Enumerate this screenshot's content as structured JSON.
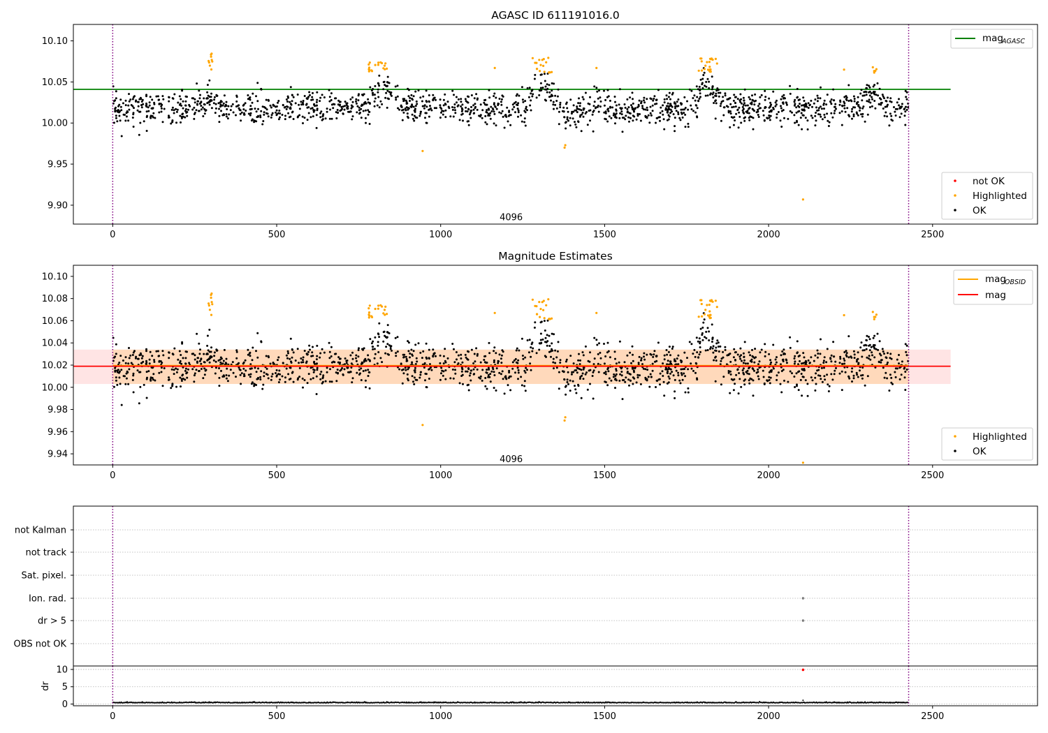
{
  "chart_data": [
    {
      "type": "scatter",
      "title": "AGASC ID 611191016.0",
      "xlim": [
        -120,
        2820
      ],
      "ylim": [
        9.877,
        10.12
      ],
      "xticks": [
        0,
        500,
        1000,
        1500,
        2000,
        2500
      ],
      "yticks": [
        9.9,
        9.95,
        10.0,
        10.05,
        10.1
      ],
      "ytick_labels": [
        "9.90",
        "9.95",
        "10.00",
        "10.05",
        "10.10"
      ],
      "vlines": [
        0,
        2427
      ],
      "hline": {
        "name": "mag",
        "subscript": "AGASC",
        "value": 10.041,
        "xmin": -120,
        "xmax": 2555,
        "color": "#008000"
      },
      "annotation": {
        "text": "4096",
        "x": 1215,
        "y": 9.885
      },
      "legend_top": [
        {
          "label": "mag",
          "subscript": "AGASC",
          "color": "#008000",
          "kind": "line"
        }
      ],
      "legend_bottom": [
        {
          "label": "not OK",
          "color": "#ff0000",
          "kind": "dot"
        },
        {
          "label": "Highlighted",
          "color": "#ffa500",
          "kind": "dot"
        },
        {
          "label": "OK",
          "color": "#000000",
          "kind": "dot"
        }
      ],
      "series": [
        {
          "name": "OK",
          "color": "#000000",
          "x_range": [
            0,
            2427
          ],
          "baseline": 10.018,
          "scatter": 0.013,
          "count": 1700
        },
        {
          "name": "Highlighted",
          "color": "#ffa500",
          "clusters": [
            {
              "x": [
                292,
                305
              ],
              "y": [
                10.061,
                10.089
              ],
              "n": 9
            },
            {
              "x": [
                780,
                840
              ],
              "y": [
                10.061,
                10.074
              ],
              "n": 18
            },
            {
              "x": [
                1280,
                1345
              ],
              "y": [
                10.061,
                10.08
              ],
              "n": 18
            },
            {
              "x": [
                1785,
                1845
              ],
              "y": [
                10.061,
                10.08
              ],
              "n": 22
            },
            {
              "x": [
                2310,
                2330
              ],
              "y": [
                10.061,
                10.071
              ],
              "n": 5
            }
          ],
          "points": [
            {
              "x": 945,
              "y": 9.966
            },
            {
              "x": 1165,
              "y": 10.067
            },
            {
              "x": 1378,
              "y": 9.97
            },
            {
              "x": 1380,
              "y": 9.973
            },
            {
              "x": 1475,
              "y": 10.067
            },
            {
              "x": 2230,
              "y": 10.065
            },
            {
              "x": 2105,
              "y": 9.907
            }
          ]
        },
        {
          "name": "not OK",
          "color": "#ff0000",
          "points": []
        }
      ]
    },
    {
      "type": "scatter",
      "title": "Magnitude Estimates",
      "xlim": [
        -120,
        2820
      ],
      "ylim": [
        9.93,
        10.11
      ],
      "xticks": [
        0,
        500,
        1000,
        1500,
        2000,
        2500
      ],
      "yticks": [
        9.94,
        9.96,
        9.98,
        10.0,
        10.02,
        10.04,
        10.06,
        10.08,
        10.1
      ],
      "ytick_labels": [
        "9.94",
        "9.96",
        "9.98",
        "10.00",
        "10.02",
        "10.04",
        "10.06",
        "10.08",
        "10.10"
      ],
      "vlines": [
        0,
        2427
      ],
      "band": {
        "ymin": 10.003,
        "ymax": 10.034,
        "xmin": -120,
        "xmax": 2555
      },
      "lines": [
        {
          "name": "mag",
          "subscript": "OBSID",
          "value": 10.019,
          "color": "#ffa500"
        },
        {
          "name": "mag",
          "value": 10.019,
          "color": "#ff0000"
        }
      ],
      "annotation": {
        "text": "4096",
        "x": 1215,
        "y": 9.935
      },
      "legend_top": [
        {
          "label": "mag",
          "subscript": "OBSID",
          "color": "#ffa500",
          "kind": "line"
        },
        {
          "label": "mag",
          "color": "#ff0000",
          "kind": "line"
        }
      ],
      "legend_bottom": [
        {
          "label": "Highlighted",
          "color": "#ffa500",
          "kind": "dot"
        },
        {
          "label": "OK",
          "color": "#000000",
          "kind": "dot"
        }
      ],
      "series": [
        {
          "name": "OK",
          "color": "#000000",
          "same_as_panel": 0
        },
        {
          "name": "Highlighted",
          "color": "#ffa500",
          "same_as_panel": 0,
          "clipped_point": {
            "x": 2105,
            "y": 9.932
          }
        }
      ]
    },
    {
      "type": "scatter",
      "title": "",
      "xlim": [
        -120,
        2820
      ],
      "vlines": [
        0,
        2427
      ],
      "flags": [
        "not Kalman",
        "not track",
        "Sat. pixel.",
        "Ion. rad.",
        "dr > 5",
        "OBS not OK"
      ],
      "flag_points": [
        {
          "flag": "Ion. rad.",
          "x": 2105
        },
        {
          "flag": "dr > 5",
          "x": 2105
        }
      ]
    },
    {
      "type": "scatter",
      "title": "",
      "ylabel": "dr",
      "xlim": [
        -120,
        2820
      ],
      "ylim": [
        -0.5,
        11
      ],
      "xticks": [
        0,
        500,
        1000,
        1500,
        2000,
        2500
      ],
      "yticks": [
        0,
        5,
        10
      ],
      "ytick_labels": [
        "0",
        "5",
        "10"
      ],
      "vlines": [
        0,
        2427
      ],
      "series": [
        {
          "name": "dr",
          "color": "#000000",
          "x_range": [
            0,
            2427
          ],
          "baseline": 0.35,
          "scatter": 0.15
        },
        {
          "name": "dr not OK",
          "color": "#ff0000",
          "points": [
            {
              "x": 2105,
              "y": 9.9
            }
          ]
        },
        {
          "name": "dr spike",
          "color": "#000000",
          "points": [
            {
              "x": 2105,
              "y": 1.1
            }
          ]
        }
      ]
    }
  ]
}
